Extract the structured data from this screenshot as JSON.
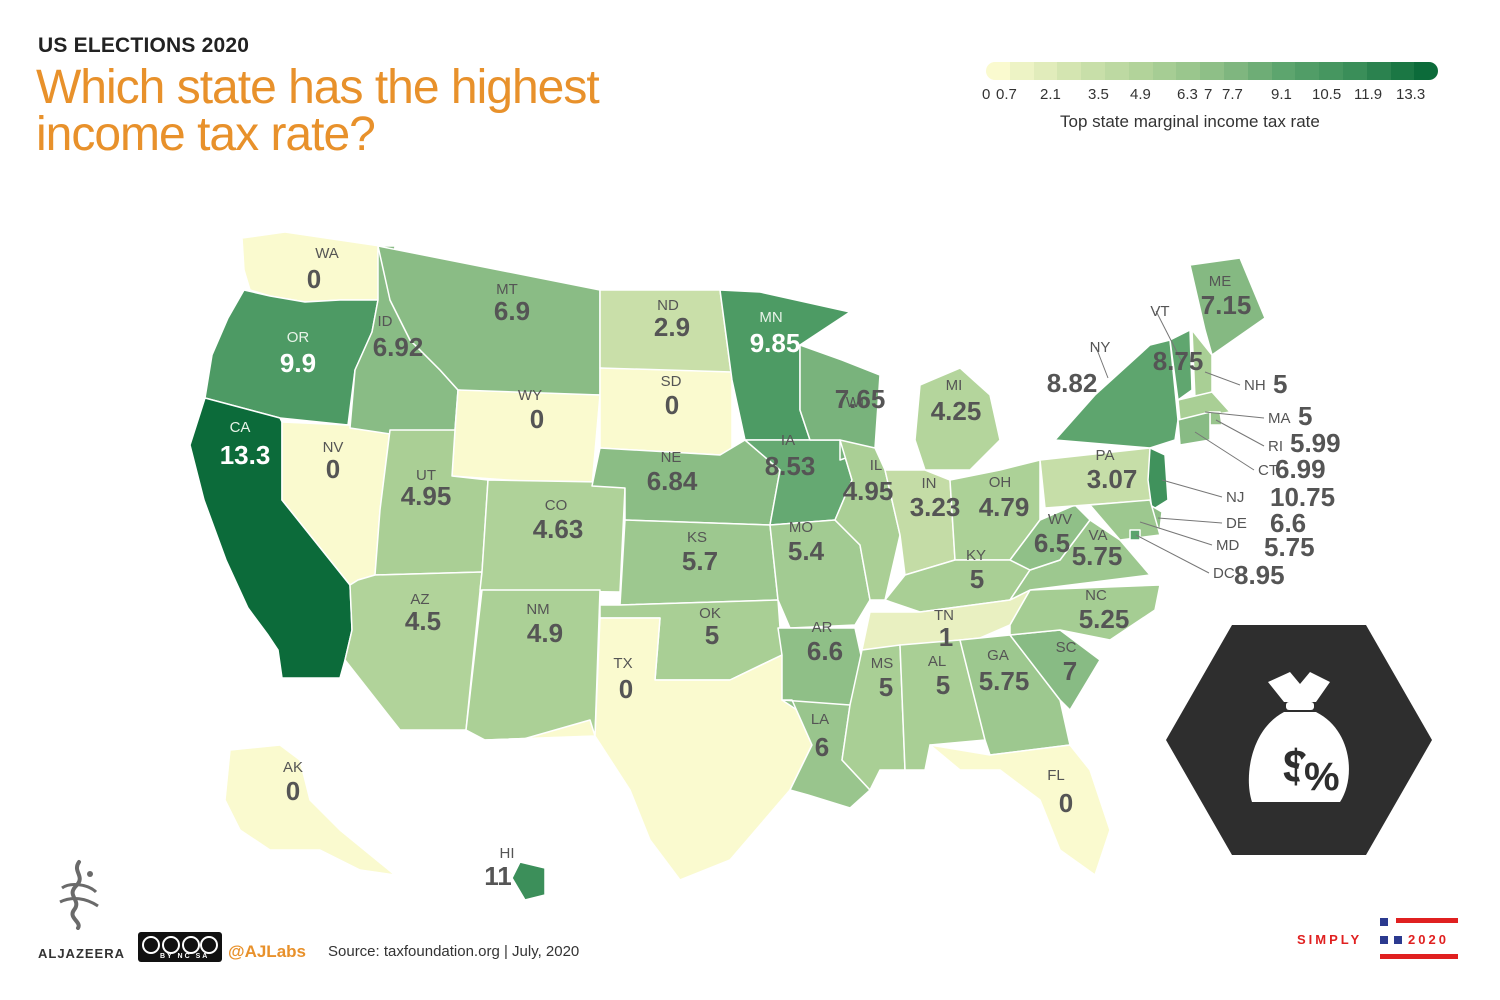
{
  "header": {
    "kicker": "US ELECTIONS 2020",
    "title": "Which state has the highest income tax rate?"
  },
  "legend": {
    "label": "Top state marginal income tax rate",
    "ticks": [
      "0",
      "0.7",
      "2.1",
      "3.5",
      "4.9",
      "6.3",
      "7",
      "7.7",
      "9.1",
      "10.5",
      "11.9",
      "13.3"
    ],
    "color_low": "#fafacf",
    "color_high": "#0c6b3a"
  },
  "states": [
    {
      "abbr": "WA",
      "value": "0"
    },
    {
      "abbr": "OR",
      "value": "9.9"
    },
    {
      "abbr": "CA",
      "value": "13.3"
    },
    {
      "abbr": "NV",
      "value": "0"
    },
    {
      "abbr": "ID",
      "value": "6.92"
    },
    {
      "abbr": "MT",
      "value": "6.9"
    },
    {
      "abbr": "WY",
      "value": "0"
    },
    {
      "abbr": "UT",
      "value": "4.95"
    },
    {
      "abbr": "AZ",
      "value": "4.5"
    },
    {
      "abbr": "CO",
      "value": "4.63"
    },
    {
      "abbr": "NM",
      "value": "4.9"
    },
    {
      "abbr": "ND",
      "value": "2.9"
    },
    {
      "abbr": "SD",
      "value": "0"
    },
    {
      "abbr": "NE",
      "value": "6.84"
    },
    {
      "abbr": "KS",
      "value": "5.7"
    },
    {
      "abbr": "OK",
      "value": "5"
    },
    {
      "abbr": "TX",
      "value": "0"
    },
    {
      "abbr": "MN",
      "value": "9.85"
    },
    {
      "abbr": "IA",
      "value": "8.53"
    },
    {
      "abbr": "MO",
      "value": "5.4"
    },
    {
      "abbr": "AR",
      "value": "6.6"
    },
    {
      "abbr": "LA",
      "value": "6"
    },
    {
      "abbr": "WI",
      "value": "7.65"
    },
    {
      "abbr": "IL",
      "value": "4.95"
    },
    {
      "abbr": "MI",
      "value": "4.25"
    },
    {
      "abbr": "IN",
      "value": "3.23"
    },
    {
      "abbr": "OH",
      "value": "4.79"
    },
    {
      "abbr": "KY",
      "value": "5"
    },
    {
      "abbr": "TN",
      "value": "1"
    },
    {
      "abbr": "MS",
      "value": "5"
    },
    {
      "abbr": "AL",
      "value": "5"
    },
    {
      "abbr": "GA",
      "value": "5.75"
    },
    {
      "abbr": "FL",
      "value": "0"
    },
    {
      "abbr": "SC",
      "value": "7"
    },
    {
      "abbr": "NC",
      "value": "5.25"
    },
    {
      "abbr": "VA",
      "value": "5.75"
    },
    {
      "abbr": "WV",
      "value": "6.5"
    },
    {
      "abbr": "PA",
      "value": "3.07"
    },
    {
      "abbr": "NY",
      "value": "8.82"
    },
    {
      "abbr": "VT",
      "value": "8.75"
    },
    {
      "abbr": "ME",
      "value": "7.15"
    },
    {
      "abbr": "NH",
      "value": "5"
    },
    {
      "abbr": "MA",
      "value": "5"
    },
    {
      "abbr": "RI",
      "value": "5.99"
    },
    {
      "abbr": "CT",
      "value": "6.99"
    },
    {
      "abbr": "NJ",
      "value": "10.75"
    },
    {
      "abbr": "DE",
      "value": "6.6"
    },
    {
      "abbr": "MD",
      "value": "5.75"
    },
    {
      "abbr": "DC",
      "value": "8.95"
    },
    {
      "abbr": "AK",
      "value": "0"
    },
    {
      "abbr": "HI",
      "value": "11"
    }
  ],
  "footer": {
    "brand": "ALJAZEERA",
    "license_badge": "BY NC SA",
    "handle": "@AJLabs",
    "source": "Source: taxfoundation.org |  July, 2020",
    "campaign_word": "SIMPLY",
    "campaign_year": "2020"
  },
  "badge": {
    "icon": "money-bag-percent-icon"
  }
}
